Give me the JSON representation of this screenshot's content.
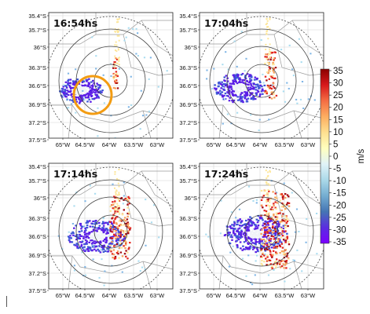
{
  "panels": [
    {
      "time": "16:54hs",
      "state": 0,
      "highlight": true
    },
    {
      "time": "17:04hs",
      "state": 1,
      "highlight": false
    },
    {
      "time": "17:14hs",
      "state": 2,
      "highlight": false
    },
    {
      "time": "17:24hs",
      "state": 3,
      "highlight": false
    }
  ],
  "lat_labels": [
    "35.4°S",
    "35.7°S",
    "36°S",
    "36.3°S",
    "36.6°S",
    "36.9°S",
    "37.2°S",
    "37.5°S"
  ],
  "lon_labels": [
    "65°W",
    "64.5°W",
    "64°W",
    "63.5°W",
    "63°W"
  ],
  "colorbar": {
    "unit": "m/s",
    "ticks": [
      "35",
      "30",
      "25",
      "20",
      "15",
      "10",
      "5",
      "0",
      "-5",
      "-10",
      "-15",
      "-20",
      "-25",
      "-30",
      "-35"
    ],
    "colors": [
      "#8b0000",
      "#d7191c",
      "#f46d43",
      "#fdae61",
      "#fee090",
      "#ffffbf",
      "#e0f3f8",
      "#abd9e9",
      "#74add1",
      "#4575b4",
      "#5a2de0",
      "#7b00ff"
    ]
  },
  "highlight_color": "#f39c12"
}
